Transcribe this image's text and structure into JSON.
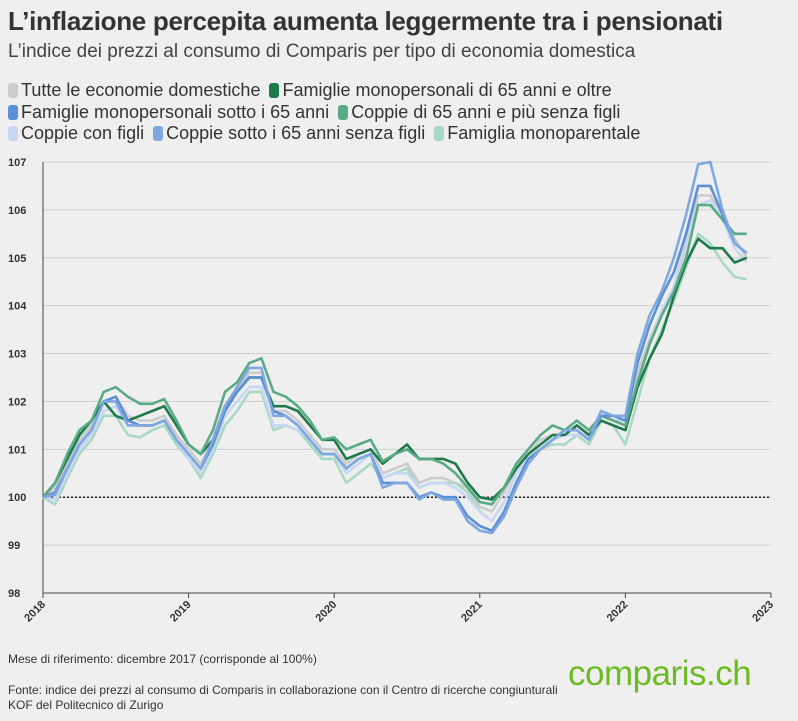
{
  "header": {
    "title": "L’inflazione percepita aumenta leggermente tra i pensionati",
    "subtitle": "L’indice dei prezzi al consumo di Comparis per tipo di economia domestica"
  },
  "footer": {
    "note": "Mese di riferimento: dicembre 2017 (corrisponde al 100%)",
    "source": "Fonte: indice dei prezzi al consumo di Comparis in collaborazione con il Centro di ricerche congiunturali KOF del Politecnico di Zurigo",
    "logo": "comparis.ch"
  },
  "chart_data": {
    "type": "line",
    "title": "L’inflazione percepita aumenta leggermente tra i pensionati",
    "xlabel": "",
    "ylabel": "",
    "x_start": "2018-01",
    "x_step": "month",
    "xlim": [
      2018,
      2023
    ],
    "ylim": [
      98,
      107
    ],
    "x_ticks": [
      "2018",
      "2019",
      "2020",
      "2021",
      "2022",
      "2023"
    ],
    "y_ticks": [
      "98",
      "99",
      "100",
      "101",
      "102",
      "103",
      "104",
      "105",
      "106",
      "107"
    ],
    "reference_line": 100,
    "grid": true,
    "legend_placement": "top",
    "series": [
      {
        "name": "Tutte le economie domestiche",
        "color": "#cccccc",
        "values": [
          100.0,
          100.2,
          100.7,
          101.2,
          101.5,
          102.0,
          102.1,
          101.7,
          101.6,
          101.6,
          101.7,
          101.3,
          101.0,
          100.7,
          101.2,
          101.9,
          102.2,
          102.6,
          102.6,
          101.8,
          101.8,
          101.6,
          101.3,
          101.0,
          101.0,
          100.7,
          100.9,
          101.0,
          100.5,
          100.6,
          100.7,
          100.3,
          100.4,
          100.4,
          100.3,
          100.2,
          99.8,
          99.7,
          100.1,
          100.6,
          100.9,
          101.2,
          101.3,
          101.3,
          101.5,
          101.3,
          101.7,
          101.6,
          101.5,
          102.6,
          103.3,
          103.9,
          104.3,
          105.3,
          106.3,
          106.3,
          105.9,
          105.4,
          105.0
        ]
      },
      {
        "name": "Famiglie monopersonali di 65 anni e oltre",
        "color": "#1e7a4a",
        "values": [
          100.0,
          100.3,
          100.8,
          101.3,
          101.6,
          102.0,
          101.7,
          101.6,
          101.7,
          101.8,
          101.9,
          101.5,
          101.1,
          100.9,
          101.2,
          101.9,
          102.2,
          102.5,
          102.5,
          101.9,
          101.9,
          101.8,
          101.5,
          101.2,
          101.2,
          100.8,
          100.9,
          101.0,
          100.7,
          100.9,
          101.1,
          100.8,
          100.8,
          100.8,
          100.7,
          100.3,
          100.0,
          99.95,
          100.2,
          100.6,
          100.9,
          101.1,
          101.3,
          101.3,
          101.5,
          101.3,
          101.6,
          101.5,
          101.4,
          102.3,
          102.9,
          103.4,
          104.2,
          104.9,
          105.4,
          105.2,
          105.2,
          104.9,
          105.0
        ]
      },
      {
        "name": "Famiglie monopersonali sotto i 65 anni",
        "color": "#5b8fd6",
        "values": [
          100.0,
          100.1,
          100.6,
          101.1,
          101.4,
          102.0,
          102.1,
          101.6,
          101.5,
          101.5,
          101.6,
          101.2,
          100.9,
          100.6,
          101.1,
          101.8,
          102.2,
          102.5,
          102.5,
          101.8,
          101.7,
          101.5,
          101.2,
          100.9,
          100.9,
          100.6,
          100.8,
          100.9,
          100.3,
          100.3,
          100.3,
          100.0,
          100.1,
          100.0,
          100.0,
          99.6,
          99.4,
          99.3,
          99.7,
          100.3,
          100.8,
          101.0,
          101.2,
          101.4,
          101.4,
          101.2,
          101.7,
          101.7,
          101.6,
          102.8,
          103.6,
          104.2,
          104.7,
          105.5,
          106.5,
          106.5,
          105.9,
          105.3,
          105.1
        ]
      },
      {
        "name": "Coppie di 65 anni e più senza figli",
        "color": "#5aab85",
        "values": [
          100.0,
          100.3,
          100.9,
          101.4,
          101.6,
          102.2,
          102.3,
          102.1,
          101.95,
          101.95,
          102.05,
          101.6,
          101.1,
          100.9,
          101.4,
          102.2,
          102.4,
          102.8,
          102.9,
          102.2,
          102.1,
          101.9,
          101.6,
          101.2,
          101.25,
          101.0,
          101.1,
          101.2,
          100.75,
          100.9,
          101.0,
          100.8,
          100.8,
          100.7,
          100.5,
          100.2,
          99.9,
          99.85,
          100.2,
          100.7,
          101.0,
          101.3,
          101.5,
          101.4,
          101.6,
          101.4,
          101.7,
          101.6,
          101.5,
          102.4,
          103.2,
          103.8,
          104.3,
          105.0,
          106.1,
          106.1,
          105.8,
          105.5,
          105.5
        ]
      },
      {
        "name": "Coppie con figli",
        "color": "#c9d7f4",
        "values": [
          100.0,
          99.95,
          100.5,
          101.0,
          101.3,
          101.8,
          101.9,
          101.5,
          101.5,
          101.5,
          101.6,
          101.2,
          100.8,
          100.5,
          101.0,
          101.7,
          102.0,
          102.3,
          102.3,
          101.5,
          101.5,
          101.4,
          101.2,
          100.9,
          100.9,
          100.5,
          100.7,
          100.9,
          100.4,
          100.5,
          100.5,
          100.2,
          100.3,
          100.3,
          100.2,
          100.0,
          99.7,
          99.5,
          99.9,
          100.5,
          100.8,
          101.0,
          101.2,
          101.3,
          101.3,
          101.3,
          101.8,
          101.6,
          101.6,
          102.4,
          103.2,
          103.9,
          104.4,
          105.4,
          106.1,
          106.2,
          105.8,
          105.2,
          104.9
        ]
      },
      {
        "name": "Coppie sotto i 65 anni senza figli",
        "color": "#7fa8e0",
        "values": [
          100.0,
          100.05,
          100.6,
          101.1,
          101.4,
          102.0,
          102.0,
          101.5,
          101.5,
          101.5,
          101.6,
          101.2,
          100.9,
          100.6,
          101.2,
          101.9,
          102.3,
          102.7,
          102.7,
          101.7,
          101.7,
          101.5,
          101.2,
          100.9,
          100.9,
          100.6,
          100.8,
          100.9,
          100.2,
          100.3,
          100.3,
          99.95,
          100.1,
          99.95,
          99.95,
          99.5,
          99.3,
          99.25,
          99.6,
          100.2,
          100.7,
          101.0,
          101.2,
          101.4,
          101.4,
          101.2,
          101.8,
          101.7,
          101.7,
          103.0,
          103.8,
          104.3,
          105.0,
          105.9,
          106.95,
          107.0,
          106.0,
          105.3,
          105.1
        ]
      },
      {
        "name": "Famiglia monoparentale",
        "color": "#a9d9c4",
        "values": [
          100.0,
          99.85,
          100.4,
          100.9,
          101.2,
          101.7,
          101.7,
          101.3,
          101.25,
          101.4,
          101.5,
          101.1,
          100.8,
          100.4,
          100.9,
          101.5,
          101.8,
          102.2,
          102.2,
          101.4,
          101.5,
          101.4,
          101.1,
          100.8,
          100.8,
          100.3,
          100.5,
          100.7,
          100.4,
          100.5,
          100.6,
          100.2,
          100.3,
          100.3,
          100.3,
          100.1,
          99.7,
          99.5,
          99.9,
          100.5,
          100.8,
          101.0,
          101.1,
          101.1,
          101.3,
          101.1,
          101.6,
          101.5,
          101.1,
          102.0,
          102.9,
          103.5,
          104.1,
          104.8,
          105.5,
          105.3,
          104.9,
          104.6,
          104.55
        ]
      }
    ]
  }
}
